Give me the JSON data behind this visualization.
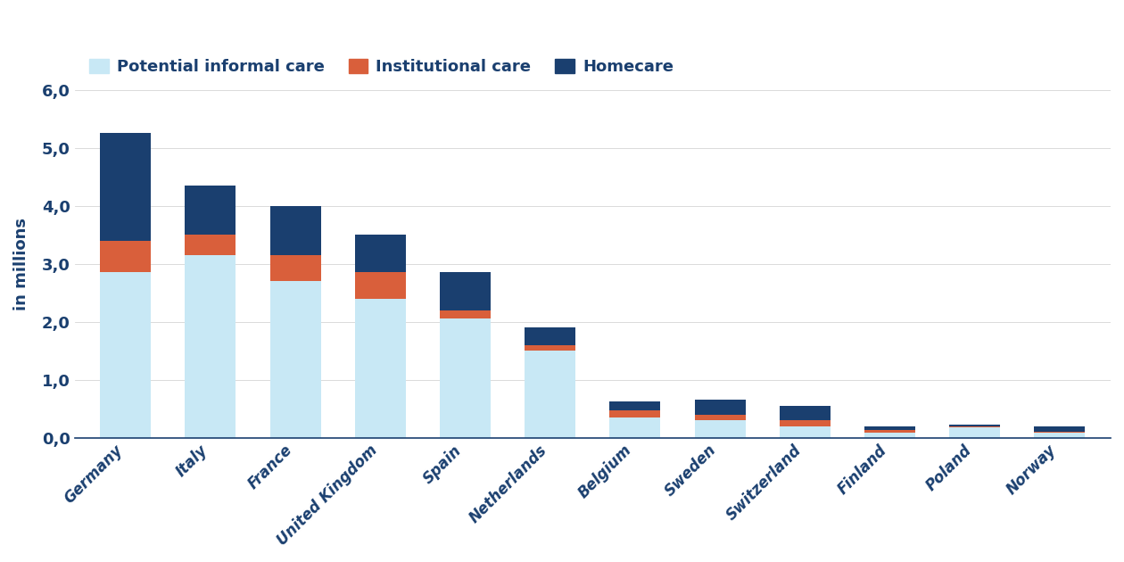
{
  "categories": [
    "Germany",
    "Italy",
    "France",
    "United Kingdom",
    "Spain",
    "Netherlands",
    "Belgium",
    "Sweden",
    "Switzerland",
    "Finland",
    "Poland",
    "Norway"
  ],
  "potential_informal_care": [
    2.85,
    3.15,
    2.7,
    2.4,
    2.05,
    1.5,
    0.35,
    0.3,
    0.2,
    0.08,
    0.18,
    0.08
  ],
  "institutional_care": [
    0.55,
    0.35,
    0.45,
    0.45,
    0.15,
    0.1,
    0.12,
    0.1,
    0.1,
    0.06,
    0.02,
    0.02
  ],
  "homecare": [
    1.85,
    0.85,
    0.85,
    0.65,
    0.65,
    0.3,
    0.15,
    0.25,
    0.25,
    0.06,
    0.03,
    0.1
  ],
  "color_informal": "#c8e8f5",
  "color_institutional": "#d95f3b",
  "color_homecare": "#1a3f6f",
  "ylabel": "in millions",
  "ylim": [
    0,
    6.0
  ],
  "yticks": [
    0.0,
    1.0,
    2.0,
    3.0,
    4.0,
    5.0,
    6.0
  ],
  "ytick_labels": [
    "0,0",
    "1,0",
    "2,0",
    "3,0",
    "4,0",
    "5,0",
    "6,0"
  ],
  "legend_labels": [
    "Potential informal care",
    "Institutional care",
    "Homecare"
  ],
  "background_color": "#ffffff",
  "plot_bg_color": "#ffffff",
  "text_color": "#1a3f6f",
  "bar_width": 0.6
}
